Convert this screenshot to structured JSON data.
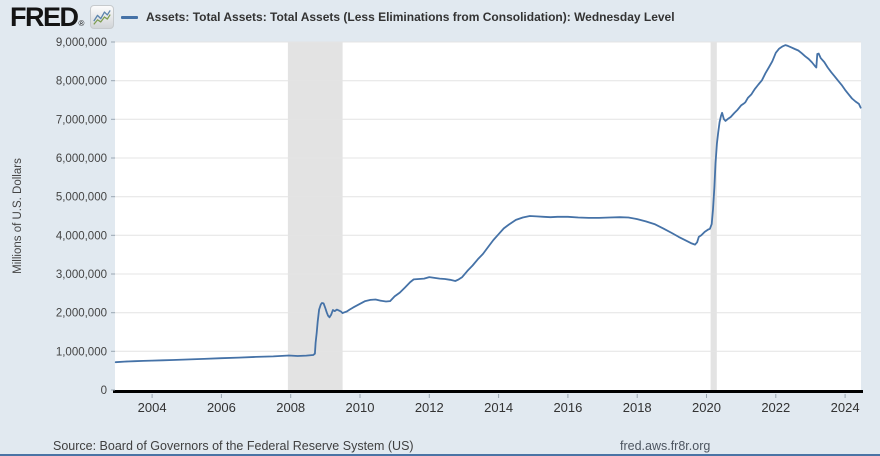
{
  "header": {
    "brand": "FRED",
    "registered_mark": "®"
  },
  "footer": {
    "source": "Source: Board of Governors of the Federal Reserve System (US)",
    "link": "fred.aws.fr8r.org"
  },
  "colors": {
    "background": "#e1e9f0",
    "plot_background": "#ffffff",
    "line": "#4572a7",
    "gridline": "#e4e4e4",
    "recession_band": "#e3e3e3",
    "axis_line": "#000000",
    "x_tick_text": "#333333",
    "y_tick_text": "#444444",
    "tick_mark": "#9aa6b2",
    "bottom_border": "#4a74a5",
    "logo_icon_blue": "#5c85ad",
    "logo_icon_green": "#7f9e53"
  },
  "chart_data": {
    "type": "line",
    "title": "Assets: Total Assets: Total Assets (Less Eliminations from Consolidation): Wednesday Level",
    "xlabel": "",
    "ylabel": "Millions of U.S. Dollars",
    "legend_position": "top",
    "grid": "horizontal",
    "xlim": [
      2002.93,
      2024.46
    ],
    "ylim": [
      0,
      9000000
    ],
    "x_ticks": [
      {
        "value": 2004,
        "label": "2004"
      },
      {
        "value": 2006,
        "label": "2006"
      },
      {
        "value": 2008,
        "label": "2008"
      },
      {
        "value": 2010,
        "label": "2010"
      },
      {
        "value": 2012,
        "label": "2012"
      },
      {
        "value": 2014,
        "label": "2014"
      },
      {
        "value": 2016,
        "label": "2016"
      },
      {
        "value": 2018,
        "label": "2018"
      },
      {
        "value": 2020,
        "label": "2020"
      },
      {
        "value": 2022,
        "label": "2022"
      },
      {
        "value": 2024,
        "label": "2024"
      }
    ],
    "y_ticks": [
      {
        "value": 0,
        "label": "0"
      },
      {
        "value": 1000000,
        "label": "1,000,000"
      },
      {
        "value": 2000000,
        "label": "2,000,000"
      },
      {
        "value": 3000000,
        "label": "3,000,000"
      },
      {
        "value": 4000000,
        "label": "4,000,000"
      },
      {
        "value": 5000000,
        "label": "5,000,000"
      },
      {
        "value": 6000000,
        "label": "6,000,000"
      },
      {
        "value": 7000000,
        "label": "7,000,000"
      },
      {
        "value": 8000000,
        "label": "8,000,000"
      },
      {
        "value": 9000000,
        "label": "9,000,000"
      }
    ],
    "recession_bands": [
      [
        2007.92,
        2009.5
      ],
      [
        2020.12,
        2020.3
      ]
    ],
    "series": [
      {
        "name": "Assets: Total Assets: Total Assets (Less Eliminations from Consolidation): Wednesday Level",
        "units": "Millions of U.S. Dollars",
        "points": [
          [
            2002.95,
            719000
          ],
          [
            2003.2,
            735000
          ],
          [
            2003.5,
            745000
          ],
          [
            2003.75,
            752000
          ],
          [
            2004.0,
            760000
          ],
          [
            2004.3,
            768000
          ],
          [
            2004.6,
            775000
          ],
          [
            2005.0,
            790000
          ],
          [
            2005.5,
            805000
          ],
          [
            2006.0,
            822000
          ],
          [
            2006.5,
            838000
          ],
          [
            2007.0,
            855000
          ],
          [
            2007.5,
            868000
          ],
          [
            2007.95,
            891000
          ],
          [
            2008.2,
            880000
          ],
          [
            2008.45,
            889000
          ],
          [
            2008.65,
            905000
          ],
          [
            2008.7,
            940000
          ],
          [
            2008.72,
            1220000
          ],
          [
            2008.75,
            1480000
          ],
          [
            2008.78,
            1770000
          ],
          [
            2008.82,
            2080000
          ],
          [
            2008.87,
            2210000
          ],
          [
            2008.9,
            2250000
          ],
          [
            2008.95,
            2240000
          ],
          [
            2009.0,
            2120000
          ],
          [
            2009.04,
            2010000
          ],
          [
            2009.08,
            1920000
          ],
          [
            2009.12,
            1880000
          ],
          [
            2009.17,
            1950000
          ],
          [
            2009.22,
            2070000
          ],
          [
            2009.27,
            2040000
          ],
          [
            2009.33,
            2080000
          ],
          [
            2009.38,
            2060000
          ],
          [
            2009.45,
            2030000
          ],
          [
            2009.5,
            1990000
          ],
          [
            2009.55,
            2010000
          ],
          [
            2009.62,
            2030000
          ],
          [
            2009.7,
            2080000
          ],
          [
            2009.8,
            2130000
          ],
          [
            2009.9,
            2180000
          ],
          [
            2010.0,
            2230000
          ],
          [
            2010.15,
            2300000
          ],
          [
            2010.3,
            2330000
          ],
          [
            2010.45,
            2340000
          ],
          [
            2010.6,
            2310000
          ],
          [
            2010.75,
            2290000
          ],
          [
            2010.87,
            2300000
          ],
          [
            2011.0,
            2420000
          ],
          [
            2011.15,
            2520000
          ],
          [
            2011.3,
            2650000
          ],
          [
            2011.45,
            2790000
          ],
          [
            2011.55,
            2860000
          ],
          [
            2011.7,
            2870000
          ],
          [
            2011.85,
            2880000
          ],
          [
            2012.0,
            2920000
          ],
          [
            2012.15,
            2900000
          ],
          [
            2012.3,
            2880000
          ],
          [
            2012.45,
            2870000
          ],
          [
            2012.6,
            2850000
          ],
          [
            2012.75,
            2820000
          ],
          [
            2012.85,
            2860000
          ],
          [
            2012.95,
            2920000
          ],
          [
            2013.1,
            3080000
          ],
          [
            2013.25,
            3220000
          ],
          [
            2013.4,
            3380000
          ],
          [
            2013.55,
            3520000
          ],
          [
            2013.7,
            3700000
          ],
          [
            2013.85,
            3880000
          ],
          [
            2014.0,
            4030000
          ],
          [
            2014.15,
            4180000
          ],
          [
            2014.3,
            4280000
          ],
          [
            2014.5,
            4400000
          ],
          [
            2014.7,
            4460000
          ],
          [
            2014.9,
            4500000
          ],
          [
            2015.1,
            4490000
          ],
          [
            2015.3,
            4480000
          ],
          [
            2015.5,
            4470000
          ],
          [
            2015.7,
            4480000
          ],
          [
            2016.0,
            4480000
          ],
          [
            2016.3,
            4460000
          ],
          [
            2016.6,
            4450000
          ],
          [
            2016.9,
            4450000
          ],
          [
            2017.2,
            4460000
          ],
          [
            2017.5,
            4470000
          ],
          [
            2017.75,
            4460000
          ],
          [
            2018.0,
            4420000
          ],
          [
            2018.25,
            4360000
          ],
          [
            2018.5,
            4290000
          ],
          [
            2018.75,
            4180000
          ],
          [
            2019.0,
            4060000
          ],
          [
            2019.2,
            3960000
          ],
          [
            2019.4,
            3870000
          ],
          [
            2019.55,
            3800000
          ],
          [
            2019.67,
            3760000
          ],
          [
            2019.73,
            3820000
          ],
          [
            2019.78,
            3960000
          ],
          [
            2019.85,
            4000000
          ],
          [
            2019.95,
            4090000
          ],
          [
            2020.05,
            4150000
          ],
          [
            2020.1,
            4170000
          ],
          [
            2020.15,
            4290000
          ],
          [
            2020.19,
            4670000
          ],
          [
            2020.23,
            5250000
          ],
          [
            2020.26,
            5860000
          ],
          [
            2020.3,
            6370000
          ],
          [
            2020.34,
            6660000
          ],
          [
            2020.38,
            6930000
          ],
          [
            2020.42,
            7090000
          ],
          [
            2020.45,
            7170000
          ],
          [
            2020.5,
            7010000
          ],
          [
            2020.55,
            6960000
          ],
          [
            2020.62,
            7010000
          ],
          [
            2020.7,
            7060000
          ],
          [
            2020.8,
            7160000
          ],
          [
            2020.9,
            7250000
          ],
          [
            2021.0,
            7360000
          ],
          [
            2021.08,
            7410000
          ],
          [
            2021.12,
            7440000
          ],
          [
            2021.2,
            7560000
          ],
          [
            2021.3,
            7650000
          ],
          [
            2021.35,
            7720000
          ],
          [
            2021.4,
            7790000
          ],
          [
            2021.5,
            7900000
          ],
          [
            2021.6,
            8010000
          ],
          [
            2021.7,
            8190000
          ],
          [
            2021.8,
            8340000
          ],
          [
            2021.9,
            8500000
          ],
          [
            2022.0,
            8720000
          ],
          [
            2022.1,
            8830000
          ],
          [
            2022.2,
            8890000
          ],
          [
            2022.28,
            8920000
          ],
          [
            2022.35,
            8900000
          ],
          [
            2022.45,
            8860000
          ],
          [
            2022.55,
            8820000
          ],
          [
            2022.65,
            8780000
          ],
          [
            2022.75,
            8710000
          ],
          [
            2022.85,
            8630000
          ],
          [
            2022.95,
            8560000
          ],
          [
            2023.05,
            8470000
          ],
          [
            2023.13,
            8380000
          ],
          [
            2023.17,
            8340000
          ],
          [
            2023.2,
            8690000
          ],
          [
            2023.24,
            8700000
          ],
          [
            2023.3,
            8580000
          ],
          [
            2023.4,
            8480000
          ],
          [
            2023.5,
            8340000
          ],
          [
            2023.6,
            8220000
          ],
          [
            2023.7,
            8110000
          ],
          [
            2023.8,
            8000000
          ],
          [
            2023.9,
            7890000
          ],
          [
            2024.0,
            7760000
          ],
          [
            2024.1,
            7650000
          ],
          [
            2024.2,
            7540000
          ],
          [
            2024.3,
            7460000
          ],
          [
            2024.4,
            7400000
          ],
          [
            2024.45,
            7300000
          ]
        ]
      }
    ]
  }
}
